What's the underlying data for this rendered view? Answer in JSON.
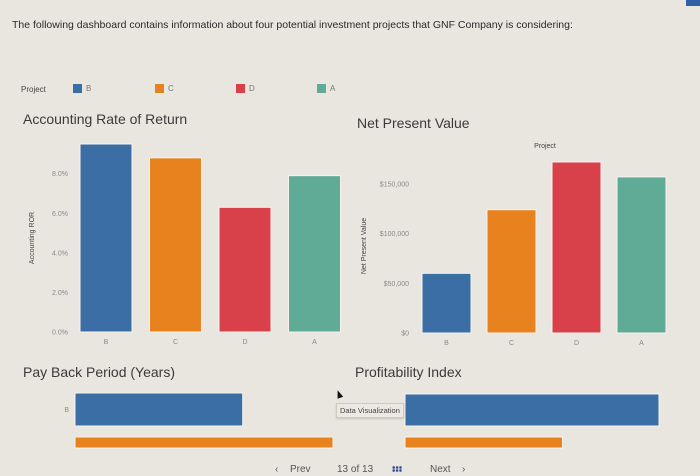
{
  "intro_text": "The following dashboard contains information about four potential investment projects that GNF Company is considering:",
  "legend": {
    "label": "Project",
    "items": [
      {
        "name": "B",
        "color": "#3a6ea5"
      },
      {
        "name": "C",
        "color": "#e8821e"
      },
      {
        "name": "D",
        "color": "#d9414a"
      },
      {
        "name": "A",
        "color": "#5fab95"
      }
    ]
  },
  "tooltip": "Data Visualization",
  "pager": {
    "prev": "Prev",
    "position": "13 of 13",
    "next": "Next"
  },
  "chart_data": [
    {
      "type": "bar",
      "title": "Accounting Rate of Return",
      "xlabel": "",
      "ylabel": "Accounting ROR",
      "categories": [
        "B",
        "C",
        "D",
        "A"
      ],
      "values": [
        9.5,
        8.8,
        6.3,
        7.9
      ],
      "ylim": [
        0,
        9.5
      ],
      "yticks": [
        0,
        2,
        4,
        6,
        8
      ],
      "ytick_labels": [
        "0.0%",
        "2.0%",
        "4.0%",
        "6.0%",
        "8.0%"
      ],
      "grid": false,
      "colors": [
        "#3a6ea5",
        "#e8821e",
        "#d9414a",
        "#5fab95"
      ]
    },
    {
      "type": "bar",
      "title": "Net Present Value",
      "subtitle": "Project",
      "xlabel": "",
      "ylabel": "Net Present Value",
      "categories": [
        "B",
        "C",
        "D",
        "A"
      ],
      "values": [
        60000,
        124000,
        172000,
        157000
      ],
      "ylim": [
        0,
        175000
      ],
      "yticks": [
        0,
        50000,
        100000,
        150000
      ],
      "ytick_labels": [
        "$0",
        "$50,000",
        "$100,000",
        "$150,000"
      ],
      "grid": false,
      "colors": [
        "#3a6ea5",
        "#e8821e",
        "#d9414a",
        "#5fab95"
      ]
    },
    {
      "type": "bar",
      "orientation": "horizontal",
      "title": "Pay Back Period (Years)",
      "categories": [
        "B",
        "C"
      ],
      "category_labels_visible": [
        "B",
        ""
      ],
      "relative_values": [
        0.65,
        1.0
      ],
      "note": "partially visible, no axis shown; values relative to longest visible bar",
      "colors": [
        "#3a6ea5",
        "#e8821e"
      ]
    },
    {
      "type": "bar",
      "orientation": "horizontal",
      "title": "Profitability Index",
      "categories": [
        "B",
        "C"
      ],
      "relative_values": [
        1.0,
        0.62
      ],
      "note": "partially visible, no axis shown; values relative to longest visible bar",
      "colors": [
        "#3a6ea5",
        "#e8821e"
      ]
    }
  ]
}
